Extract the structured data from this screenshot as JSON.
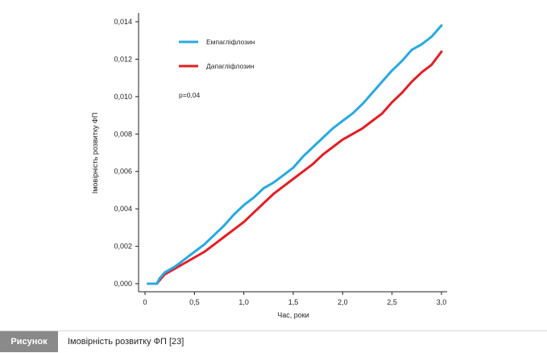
{
  "chart_data": {
    "type": "line",
    "xlabel": "Час, роки",
    "ylabel": "Імовірність розвитку ФП",
    "xlim": [
      0,
      3.0
    ],
    "ylim": [
      0,
      0.014
    ],
    "x_ticks": [
      "0",
      "0,5",
      "1,0",
      "1,5",
      "2,0",
      "2,5",
      "3,0"
    ],
    "y_ticks": [
      "0,000",
      "0,002",
      "0,004",
      "0,006",
      "0,008",
      "0,010",
      "0,012",
      "0,014"
    ],
    "annotation": "p=0,04",
    "legend_position": "top-left",
    "series": [
      {
        "name": "Емпагліфлозин",
        "color": "#27aae1",
        "x": [
          0.03,
          0.12,
          0.15,
          0.2,
          0.3,
          0.4,
          0.5,
          0.6,
          0.7,
          0.8,
          0.9,
          1.0,
          1.1,
          1.2,
          1.3,
          1.4,
          1.5,
          1.6,
          1.7,
          1.8,
          1.9,
          2.0,
          2.1,
          2.2,
          2.3,
          2.4,
          2.5,
          2.6,
          2.7,
          2.8,
          2.9,
          3.0
        ],
        "y": [
          0.0,
          0.0,
          0.0003,
          0.0006,
          0.0009,
          0.0013,
          0.0017,
          0.0021,
          0.0026,
          0.0031,
          0.0037,
          0.0042,
          0.0046,
          0.0051,
          0.0054,
          0.0058,
          0.0062,
          0.0068,
          0.0073,
          0.0078,
          0.0083,
          0.0087,
          0.0091,
          0.0096,
          0.0102,
          0.0108,
          0.0114,
          0.0119,
          0.0125,
          0.0128,
          0.0132,
          0.0138
        ]
      },
      {
        "name": "Дапагліфлозин",
        "color": "#e31e24",
        "x": [
          0.03,
          0.12,
          0.15,
          0.2,
          0.3,
          0.4,
          0.5,
          0.6,
          0.7,
          0.8,
          0.9,
          1.0,
          1.1,
          1.2,
          1.3,
          1.4,
          1.5,
          1.6,
          1.7,
          1.8,
          1.9,
          2.0,
          2.1,
          2.2,
          2.3,
          2.4,
          2.5,
          2.6,
          2.7,
          2.8,
          2.9,
          3.0
        ],
        "y": [
          0.0,
          0.0,
          0.0002,
          0.0005,
          0.0008,
          0.0011,
          0.0014,
          0.0017,
          0.0021,
          0.0025,
          0.0029,
          0.0033,
          0.0038,
          0.0043,
          0.0048,
          0.0052,
          0.0056,
          0.006,
          0.0064,
          0.0069,
          0.0073,
          0.0077,
          0.008,
          0.0083,
          0.0087,
          0.0091,
          0.0097,
          0.0102,
          0.0108,
          0.0113,
          0.0117,
          0.0124
        ]
      }
    ]
  },
  "caption": {
    "label": "Рисунок",
    "text": "Імовірність розвитку ФП [23]"
  }
}
